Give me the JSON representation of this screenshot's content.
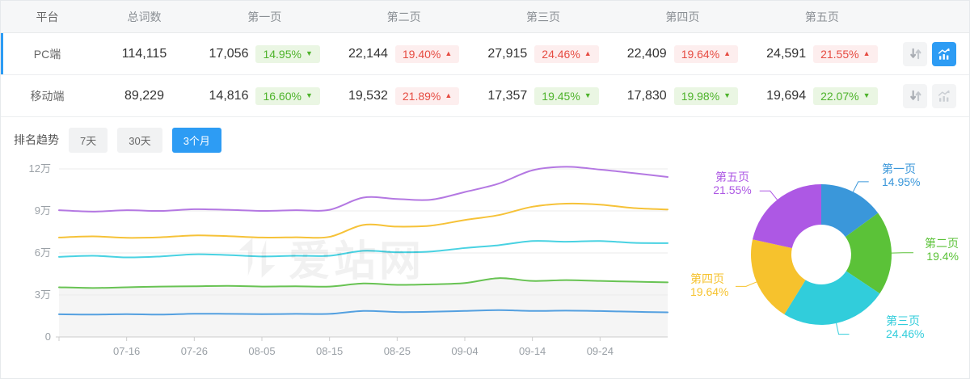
{
  "table": {
    "columns": [
      "平台",
      "总词数",
      "第一页",
      "第二页",
      "第三页",
      "第四页",
      "第五页"
    ],
    "rows": [
      {
        "platform": "PC端",
        "total": "114,115",
        "active": true,
        "trend_selected": true,
        "pages": [
          {
            "value": "17,056",
            "pct": "14.95%",
            "dir": "down"
          },
          {
            "value": "22,144",
            "pct": "19.40%",
            "dir": "up"
          },
          {
            "value": "27,915",
            "pct": "24.46%",
            "dir": "up"
          },
          {
            "value": "22,409",
            "pct": "19.64%",
            "dir": "up"
          },
          {
            "value": "24,591",
            "pct": "21.55%",
            "dir": "up"
          }
        ]
      },
      {
        "platform": "移动端",
        "total": "89,229",
        "active": false,
        "trend_selected": false,
        "pages": [
          {
            "value": "14,816",
            "pct": "16.60%",
            "dir": "down"
          },
          {
            "value": "19,532",
            "pct": "21.89%",
            "dir": "up"
          },
          {
            "value": "17,357",
            "pct": "19.45%",
            "dir": "down"
          },
          {
            "value": "17,830",
            "pct": "19.98%",
            "dir": "down"
          },
          {
            "value": "19,694",
            "pct": "22.07%",
            "dir": "down"
          }
        ]
      }
    ]
  },
  "trend": {
    "label": "排名趋势",
    "tabs": [
      {
        "label": "7天",
        "active": false
      },
      {
        "label": "30天",
        "active": false
      },
      {
        "label": "3个月",
        "active": true
      }
    ]
  },
  "watermark_text": "爱站网",
  "colors": {
    "accent_blue": "#2d9cf4",
    "up_red": "#e64c42",
    "down_green": "#4eb32b"
  },
  "chart_data": [
    {
      "type": "line",
      "title": "",
      "xlabel": "",
      "ylabel": "",
      "unit": "万",
      "ylim": [
        0,
        12
      ],
      "grid": true,
      "legend_position": "none",
      "x": [
        "07-06",
        "07-11",
        "07-16",
        "07-21",
        "07-26",
        "07-31",
        "08-05",
        "08-10",
        "08-15",
        "08-20",
        "08-25",
        "08-30",
        "09-04",
        "09-09",
        "09-14",
        "09-19",
        "09-24",
        "09-29",
        "10-04"
      ],
      "x_tick_labels": [
        "07-16",
        "07-26",
        "08-05",
        "08-15",
        "08-25",
        "09-04",
        "09-14",
        "09-24"
      ],
      "y_tick_labels": [
        "0",
        "3万",
        "6万",
        "9万",
        "12万"
      ],
      "series": [
        {
          "name": "purple-line",
          "color": "#b478e2",
          "values": [
            9.05,
            8.95,
            9.05,
            9.0,
            9.12,
            9.08,
            9.0,
            9.05,
            9.08,
            9.95,
            9.85,
            9.8,
            10.35,
            10.95,
            11.9,
            12.15,
            11.95,
            11.7,
            11.42
          ]
        },
        {
          "name": "yellow-line",
          "color": "#f6c238",
          "values": [
            7.1,
            7.18,
            7.08,
            7.12,
            7.25,
            7.2,
            7.1,
            7.12,
            7.15,
            8.0,
            7.88,
            7.95,
            8.35,
            8.7,
            9.3,
            9.52,
            9.45,
            9.2,
            9.1
          ]
        },
        {
          "name": "cyan-line",
          "color": "#49d2e2",
          "values": [
            5.72,
            5.8,
            5.68,
            5.75,
            5.9,
            5.85,
            5.75,
            5.8,
            5.8,
            6.15,
            6.05,
            6.1,
            6.35,
            6.55,
            6.85,
            6.8,
            6.85,
            6.72,
            6.7
          ]
        },
        {
          "name": "green-line",
          "color": "#68c353",
          "values": [
            3.55,
            3.5,
            3.55,
            3.6,
            3.62,
            3.65,
            3.6,
            3.62,
            3.6,
            3.82,
            3.72,
            3.76,
            3.85,
            4.2,
            4.0,
            4.06,
            4.0,
            3.95,
            3.9
          ],
          "area_fill": "#f5f5f5"
        },
        {
          "name": "blue-line",
          "color": "#54a0e0",
          "values": [
            1.62,
            1.6,
            1.63,
            1.6,
            1.66,
            1.65,
            1.63,
            1.65,
            1.65,
            1.86,
            1.78,
            1.8,
            1.86,
            1.92,
            1.86,
            1.88,
            1.85,
            1.8,
            1.76
          ]
        }
      ]
    },
    {
      "type": "pie",
      "donut": true,
      "slices": [
        {
          "label": "第一页",
          "pct": 14.95,
          "pct_label": "14.95%",
          "color": "#3a97da"
        },
        {
          "label": "第二页",
          "pct": 19.4,
          "pct_label": "19.4%",
          "color": "#5bc238"
        },
        {
          "label": "第三页",
          "pct": 24.46,
          "pct_label": "24.46%",
          "color": "#31cddb"
        },
        {
          "label": "第四页",
          "pct": 19.64,
          "pct_label": "19.64%",
          "color": "#f6c22d"
        },
        {
          "label": "第五页",
          "pct": 21.55,
          "pct_label": "21.55%",
          "color": "#ad58e4"
        }
      ]
    }
  ]
}
